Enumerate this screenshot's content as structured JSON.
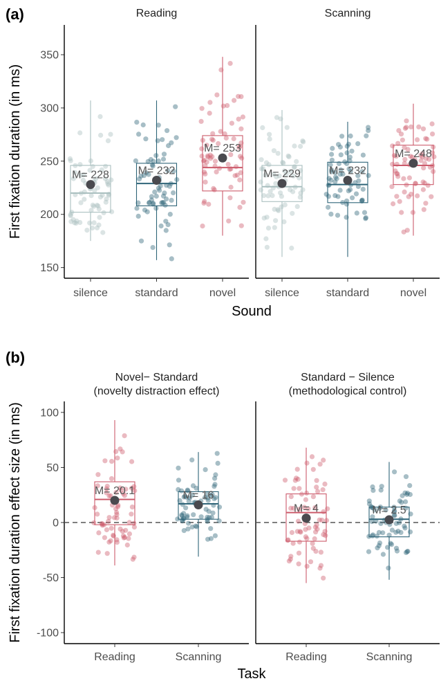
{
  "panels": [
    {
      "tag": "(a)",
      "ylabel": "First fixation duration (in ms)",
      "xlabel": "Sound",
      "ylim": [
        140,
        378
      ],
      "yticks": [
        150,
        200,
        250,
        300,
        350
      ],
      "zero_line": false,
      "facets": [
        {
          "title": [
            "Reading"
          ],
          "groups": [
            {
              "label": "silence",
              "color": "#a9bfbf",
              "median": 220,
              "q1": 202,
              "q3": 246,
              "wlo": 175,
              "whi": 307,
              "mean": 228,
              "mean_label": "M= 228",
              "n": 70,
              "seed": 11
            },
            {
              "label": "standard",
              "color": "#2e6478",
              "median": 229,
              "q1": 208,
              "q3": 248,
              "wlo": 157,
              "whi": 307,
              "mean": 232,
              "mean_label": "M= 232",
              "n": 70,
              "seed": 23
            },
            {
              "label": "novel",
              "color": "#cc5b6b",
              "median": 244,
              "q1": 222,
              "q3": 274,
              "wlo": 180,
              "whi": 348,
              "mean": 253,
              "mean_label": "M= 253",
              "n": 70,
              "seed": 37
            }
          ]
        },
        {
          "title": [
            "Scanning"
          ],
          "groups": [
            {
              "label": "silence",
              "color": "#a9bfbf",
              "median": 226,
              "q1": 212,
              "q3": 246,
              "wlo": 160,
              "whi": 298,
              "mean": 229,
              "mean_label": "M= 229",
              "n": 70,
              "seed": 47
            },
            {
              "label": "standard",
              "color": "#2e6478",
              "median": 228,
              "q1": 211,
              "q3": 249,
              "wlo": 160,
              "whi": 287,
              "mean": 232,
              "mean_label": "M= 232",
              "n": 70,
              "seed": 59
            },
            {
              "label": "novel",
              "color": "#cc5b6b",
              "median": 246,
              "q1": 228,
              "q3": 265,
              "wlo": 180,
              "whi": 304,
              "mean": 248,
              "mean_label": "M= 248",
              "n": 70,
              "seed": 71
            }
          ]
        }
      ]
    },
    {
      "tag": "(b)",
      "ylabel": "First fixation duration effect size (in ms)",
      "xlabel": "Task",
      "ylim": [
        -110,
        110
      ],
      "yticks": [
        -100,
        -50,
        0,
        50,
        100
      ],
      "zero_line": true,
      "facets": [
        {
          "title": [
            "Novel− Standard",
            "(novelty distraction effect)"
          ],
          "groups": [
            {
              "label": "Reading",
              "color": "#cc5b6b",
              "median": 21,
              "q1": -2,
              "q3": 37,
              "wlo": -39,
              "whi": 93,
              "mean": 20.1,
              "mean_label": "M= 20.1",
              "n": 70,
              "seed": 83
            },
            {
              "label": "Scanning",
              "color": "#2e6478",
              "median": 17,
              "q1": 3,
              "q3": 28,
              "wlo": -31,
              "whi": 64,
              "mean": 16,
              "mean_label": "M= 16",
              "n": 70,
              "seed": 97
            }
          ]
        },
        {
          "title": [
            "Standard − Silence",
            "(methodological control)"
          ],
          "groups": [
            {
              "label": "Reading",
              "color": "#cc5b6b",
              "median": 9,
              "q1": -17,
              "q3": 26,
              "wlo": -55,
              "whi": 68,
              "mean": 4,
              "mean_label": "M= 4",
              "n": 70,
              "seed": 101
            },
            {
              "label": "Scanning",
              "color": "#2e6478",
              "median": 3,
              "q1": -13,
              "q3": 14,
              "wlo": -52,
              "whi": 55,
              "mean": 2.5,
              "mean_label": "M= 2.5",
              "n": 70,
              "seed": 113
            }
          ]
        }
      ]
    }
  ],
  "chart_data": [
    {
      "type": "box",
      "panel": "(a)",
      "xlabel": "Sound",
      "ylabel": "First fixation duration (in ms)",
      "ylim": [
        140,
        378
      ],
      "facets": [
        "Reading",
        "Scanning"
      ],
      "categories": [
        "silence",
        "standard",
        "novel"
      ],
      "means": {
        "Reading": [
          228,
          232,
          253
        ],
        "Scanning": [
          229,
          232,
          248
        ]
      }
    },
    {
      "type": "box",
      "panel": "(b)",
      "xlabel": "Task",
      "ylabel": "First fixation duration effect size (in ms)",
      "ylim": [
        -110,
        110
      ],
      "facets": [
        "Novel− Standard (novelty distraction effect)",
        "Standard − Silence (methodological control)"
      ],
      "categories": [
        "Reading",
        "Scanning"
      ],
      "means": {
        "Novel− Standard": [
          20.1,
          16
        ],
        "Standard − Silence": [
          4,
          2.5
        ]
      }
    }
  ]
}
